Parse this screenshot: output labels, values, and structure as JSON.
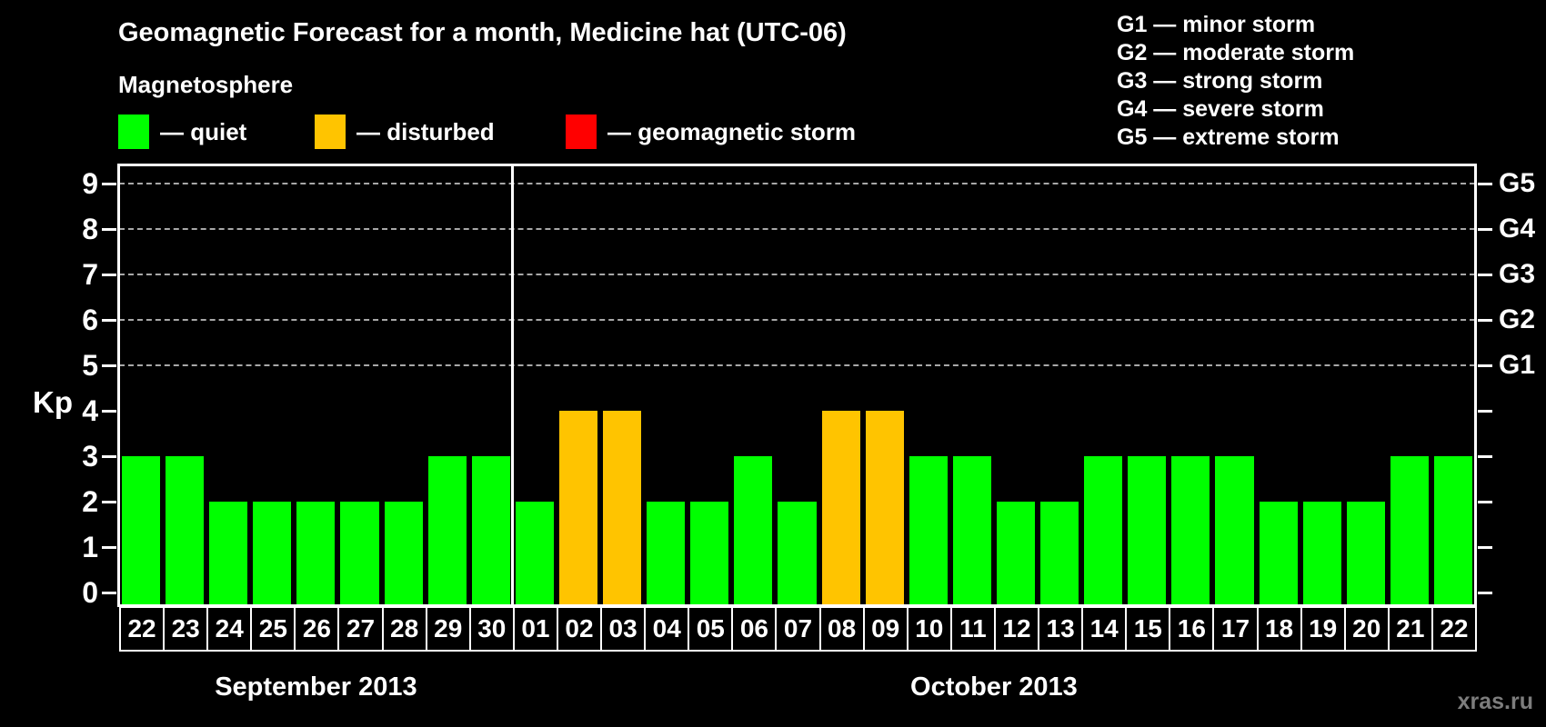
{
  "title": "Geomagnetic Forecast for a month, Medicine hat (UTC-06)",
  "subtitle": "Magnetosphere",
  "kp_axis_label": "Kp",
  "watermark": "xras.ru",
  "legend": {
    "items": [
      {
        "status": "quiet",
        "color": "#00ff00",
        "label": "— quiet"
      },
      {
        "status": "disturbed",
        "color": "#ffc400",
        "label": "— disturbed"
      },
      {
        "status": "storm",
        "color": "#ff0000",
        "label": "— geomagnetic storm"
      }
    ]
  },
  "storm_scale_legend": [
    "G1 — minor storm",
    "G2 — moderate storm",
    "G3 — strong storm",
    "G4 — severe storm",
    "G5 — extreme storm"
  ],
  "chart_data": {
    "type": "bar",
    "ylabel": "Kp",
    "ylim": [
      0,
      9
    ],
    "grid_levels": [
      5,
      6,
      7,
      8,
      9
    ],
    "right_axis_labels": [
      {
        "text": "G5",
        "kp": 9
      },
      {
        "text": "G4",
        "kp": 8
      },
      {
        "text": "G3",
        "kp": 7
      },
      {
        "text": "G2",
        "kp": 6
      },
      {
        "text": "G1",
        "kp": 5
      }
    ],
    "status_colors": {
      "quiet": "#00ff00",
      "disturbed": "#ffc400",
      "storm": "#ff0000"
    },
    "months": [
      {
        "label": "September 2013",
        "days": [
          {
            "day": "22",
            "kp": 3,
            "status": "quiet"
          },
          {
            "day": "23",
            "kp": 3,
            "status": "quiet"
          },
          {
            "day": "24",
            "kp": 2,
            "status": "quiet"
          },
          {
            "day": "25",
            "kp": 2,
            "status": "quiet"
          },
          {
            "day": "26",
            "kp": 2,
            "status": "quiet"
          },
          {
            "day": "27",
            "kp": 2,
            "status": "quiet"
          },
          {
            "day": "28",
            "kp": 2,
            "status": "quiet"
          },
          {
            "day": "29",
            "kp": 3,
            "status": "quiet"
          },
          {
            "day": "30",
            "kp": 3,
            "status": "quiet"
          }
        ]
      },
      {
        "label": "October 2013",
        "days": [
          {
            "day": "01",
            "kp": 2,
            "status": "quiet"
          },
          {
            "day": "02",
            "kp": 4,
            "status": "disturbed"
          },
          {
            "day": "03",
            "kp": 4,
            "status": "disturbed"
          },
          {
            "day": "04",
            "kp": 2,
            "status": "quiet"
          },
          {
            "day": "05",
            "kp": 2,
            "status": "quiet"
          },
          {
            "day": "06",
            "kp": 3,
            "status": "quiet"
          },
          {
            "day": "07",
            "kp": 2,
            "status": "quiet"
          },
          {
            "day": "08",
            "kp": 4,
            "status": "disturbed"
          },
          {
            "day": "09",
            "kp": 4,
            "status": "disturbed"
          },
          {
            "day": "10",
            "kp": 3,
            "status": "quiet"
          },
          {
            "day": "11",
            "kp": 3,
            "status": "quiet"
          },
          {
            "day": "12",
            "kp": 2,
            "status": "quiet"
          },
          {
            "day": "13",
            "kp": 2,
            "status": "quiet"
          },
          {
            "day": "14",
            "kp": 3,
            "status": "quiet"
          },
          {
            "day": "15",
            "kp": 3,
            "status": "quiet"
          },
          {
            "day": "16",
            "kp": 3,
            "status": "quiet"
          },
          {
            "day": "17",
            "kp": 3,
            "status": "quiet"
          },
          {
            "day": "18",
            "kp": 2,
            "status": "quiet"
          },
          {
            "day": "19",
            "kp": 2,
            "status": "quiet"
          },
          {
            "day": "20",
            "kp": 2,
            "status": "quiet"
          },
          {
            "day": "21",
            "kp": 3,
            "status": "quiet"
          },
          {
            "day": "22",
            "kp": 3,
            "status": "quiet"
          }
        ]
      }
    ]
  }
}
